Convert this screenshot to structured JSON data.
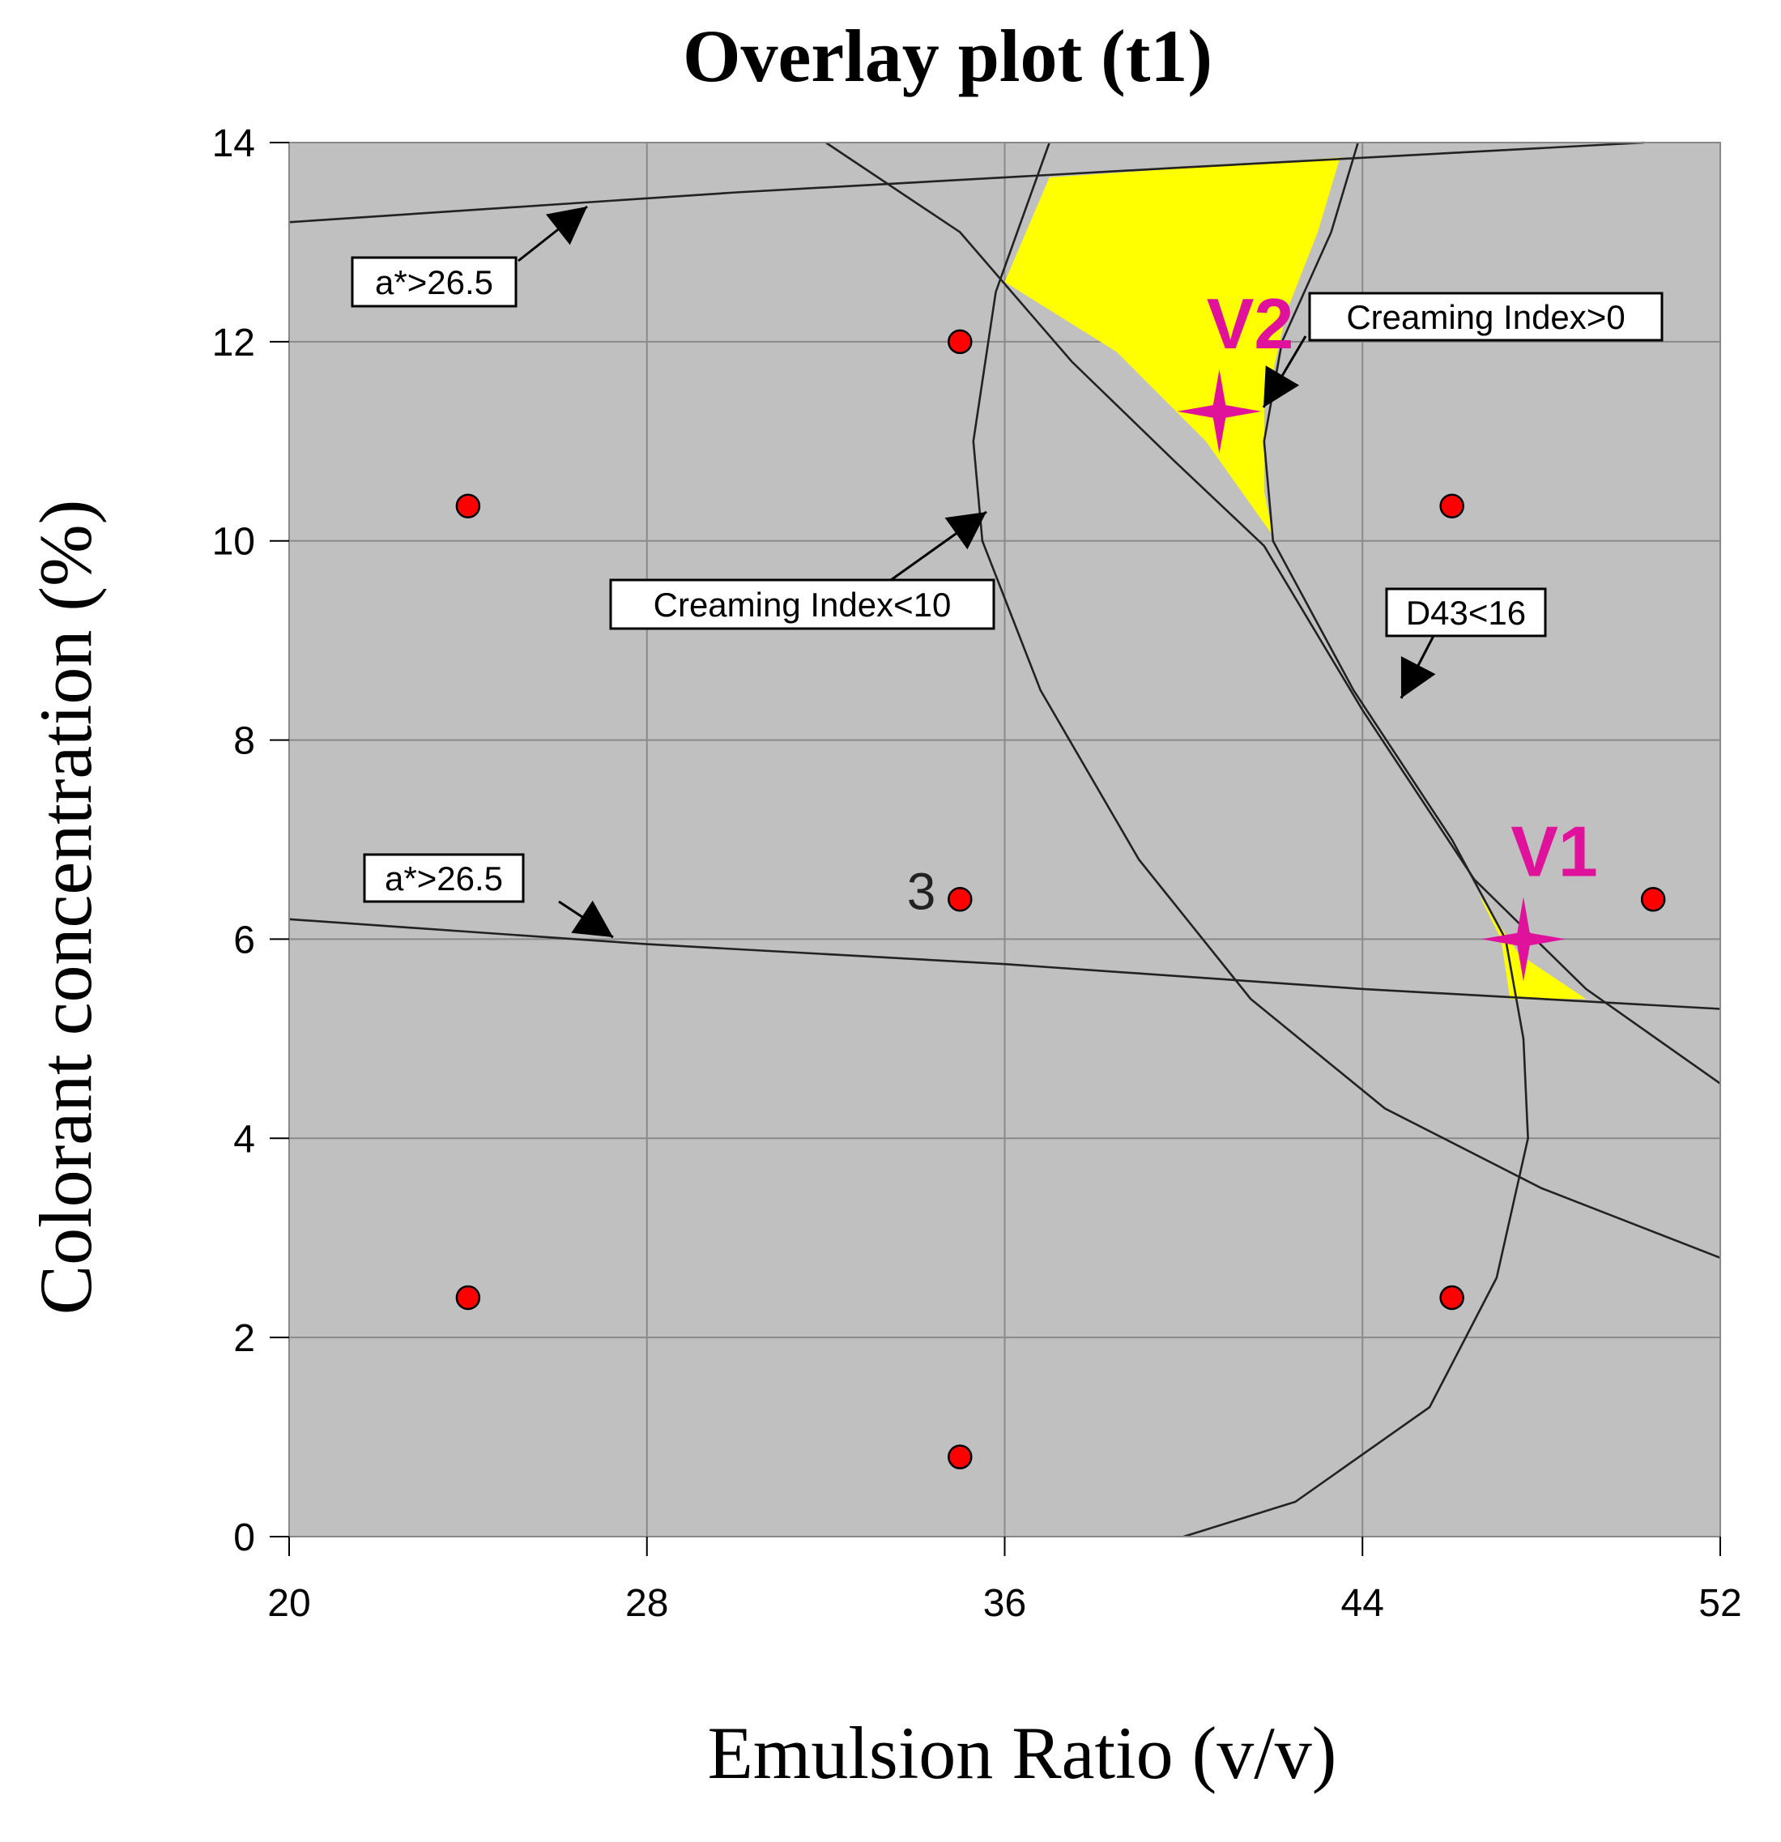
{
  "chart_data": {
    "type": "scatter",
    "title": "Overlay plot (t1)",
    "xlabel": "Emulsion Ratio (v/v)",
    "ylabel": "Colorant concentration (%)",
    "xlim": [
      20,
      52
    ],
    "ylim": [
      0,
      14
    ],
    "x_ticks": [
      "20",
      "28",
      "36",
      "44",
      "52"
    ],
    "y_ticks": [
      "0",
      "2",
      "4",
      "6",
      "8",
      "10",
      "12",
      "14"
    ],
    "grid": true,
    "colors": {
      "plot_background": "#c0c0c0",
      "feasible_region": "#ffff00",
      "design_points": "#ff0000",
      "markers": "#e0119b",
      "contours": "#222222"
    },
    "design_points": [
      {
        "x": 35,
        "y": 12
      },
      {
        "x": 24,
        "y": 10.35
      },
      {
        "x": 46,
        "y": 10.35
      },
      {
        "x": 35,
        "y": 6.4
      },
      {
        "x": 50.5,
        "y": 6.4
      },
      {
        "x": 24,
        "y": 2.4
      },
      {
        "x": 46,
        "y": 2.4
      },
      {
        "x": 35,
        "y": 0.8
      }
    ],
    "replicate_label": {
      "text": "3",
      "x": 35,
      "y": 6.4
    },
    "markers": [
      {
        "label": "V1",
        "x": 47.6,
        "y": 6.0
      },
      {
        "label": "V2",
        "x": 40.8,
        "y": 11.3
      }
    ],
    "annotations": [
      "a*>26.5",
      "Creaming Index>0",
      "Creaming Index<10",
      "D43<16",
      "a*>26.5"
    ]
  }
}
